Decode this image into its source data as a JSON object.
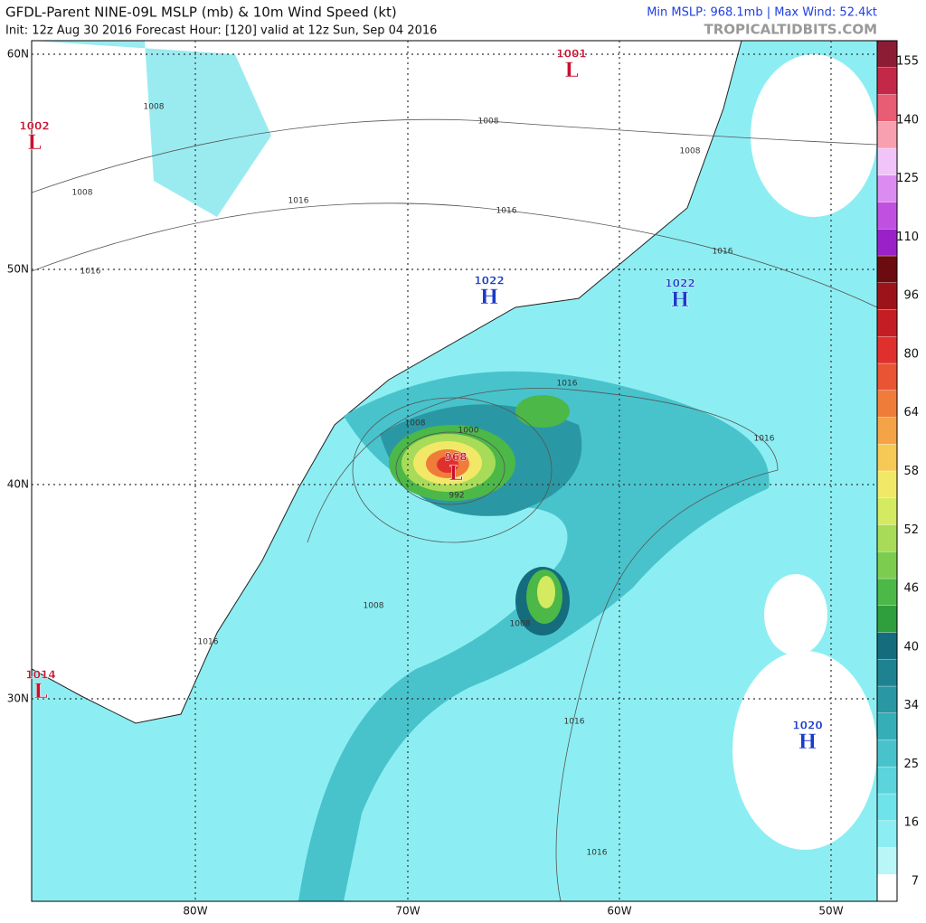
{
  "header": {
    "title": "GFDL-Parent NINE-09L MSLP (mb) & 10m Wind Speed (kt)",
    "subtitle": "Init: 12z Aug 30 2016   Forecast Hour: [120]   valid at 12z Sun, Sep 04 2016",
    "stats": "Min MSLP: 968.1mb | Max Wind: 52.4kt",
    "credit": "TROPICALTIDBITS.COM"
  },
  "map": {
    "latitudes": [
      "60N",
      "50N",
      "40N",
      "30N"
    ],
    "longitudes": [
      "80W",
      "70W",
      "60W",
      "50W"
    ],
    "centers": [
      {
        "pressure": 1001,
        "symbol": "L"
      },
      {
        "pressure": 1002,
        "symbol": "L"
      },
      {
        "pressure": 1014,
        "symbol": "L"
      },
      {
        "pressure": 968,
        "symbol": "L"
      },
      {
        "pressure": 1022,
        "symbol": "H"
      },
      {
        "pressure": 1022,
        "symbol": "H"
      },
      {
        "pressure": 1020,
        "symbol": "H"
      }
    ],
    "isobar_labels": [
      1008,
      1008,
      1008,
      1008,
      1008,
      1008,
      1008,
      1016,
      1016,
      1016,
      1016,
      1016,
      1016,
      1016,
      1016,
      1016,
      1000,
      992
    ]
  },
  "colorbar": {
    "ticks": [
      7,
      16,
      25,
      34,
      40,
      46,
      52,
      58,
      64,
      80,
      96,
      110,
      125,
      140,
      155
    ],
    "colors": [
      "#ffffff",
      "#b8f6f8",
      "#8ceef2",
      "#6fe3ea",
      "#5cd4dc",
      "#48c3cc",
      "#36aeb8",
      "#2a98a4",
      "#1f8290",
      "#156c7c",
      "#2f9e3c",
      "#4cb848",
      "#7ccc50",
      "#a8dc58",
      "#d4ea60",
      "#f2e868",
      "#f6c856",
      "#f4a446",
      "#f07c3a",
      "#e85434",
      "#e0302e",
      "#c41e24",
      "#9c141a",
      "#6c0c10",
      "#9a20c8",
      "#c050e0",
      "#dc8cf0",
      "#f0c4f8",
      "#f8a0b0",
      "#e85c74",
      "#c42848",
      "#8c1c34"
    ]
  }
}
